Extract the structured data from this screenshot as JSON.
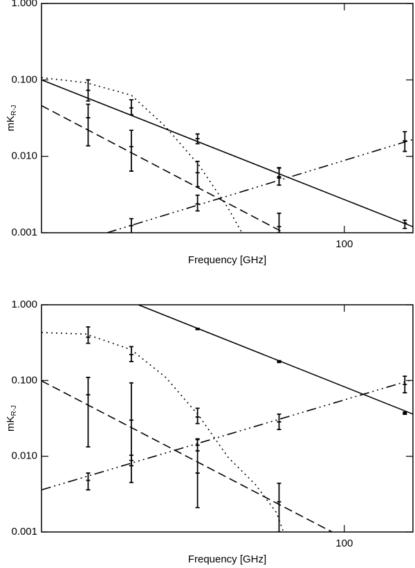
{
  "chart_data": [
    {
      "type": "line",
      "xlabel": "Frequency [GHz]",
      "ylabel": "mK",
      "ylabel_subscript": "R-J",
      "log_x": true,
      "log_y": true,
      "grid": false,
      "color": "#000000",
      "xlim": [
        16.7,
        150
      ],
      "ylim": [
        0.001,
        1
      ],
      "xticks": [
        100
      ],
      "yticks": [
        0.001,
        {
          "value": 0.01,
          "label": "0.010"
        },
        {
          "value": 0.1,
          "label": "0.100"
        },
        {
          "value": 1,
          "label": "1.000"
        }
      ],
      "series": [
        {
          "style": "solid",
          "x": [
            16.7,
            150
          ],
          "values": [
            0.1,
            0.0012
          ]
        },
        {
          "style": "dashed",
          "x": [
            16.7,
            70
          ],
          "values": [
            0.046,
            0.001
          ]
        },
        {
          "style": "dotted",
          "x": [
            16.7,
            21.7,
            28.4,
            34.8,
            42.4,
            50.3,
            54.6
          ],
          "values": [
            0.107,
            0.092,
            0.063,
            0.0243,
            0.0076,
            0.0021,
            0.001
          ]
        },
        {
          "style": "dash-dot-dot",
          "x": [
            24.6,
            150
          ],
          "values": [
            0.001,
            0.0166
          ]
        }
      ],
      "error_bars": {
        "x": [
          22,
          28.4,
          42,
          68,
          143,
          22,
          28.4,
          42,
          68,
          28.4,
          42,
          68,
          143
        ],
        "values": [
          0.073,
          0.043,
          0.017,
          0.0054,
          0.00134,
          0.032,
          0.0134,
          0.0061,
          0.0012,
          0.00124,
          0.00238,
          0.0052,
          0.0159
        ],
        "lower": [
          0.053,
          0.035,
          0.0146,
          0.0042,
          0.00114,
          0.0137,
          0.0064,
          0.004,
          0.001,
          0.00096,
          0.00193,
          0.0042,
          0.0116
        ],
        "upper": [
          0.1,
          0.055,
          0.0196,
          0.007,
          0.00146,
          0.048,
          0.0219,
          0.0086,
          0.0018,
          0.00153,
          0.0031,
          0.0071,
          0.021
        ]
      }
    },
    {
      "type": "line",
      "xlabel": "Frequency [GHz]",
      "ylabel": "mK",
      "ylabel_subscript": "R-J",
      "log_x": true,
      "log_y": true,
      "grid": false,
      "color": "#000000",
      "xlim": [
        16.7,
        150
      ],
      "ylim": [
        0.001,
        1
      ],
      "xticks": [
        100
      ],
      "yticks": [
        0.001,
        {
          "value": 0.01,
          "label": "0.010"
        },
        {
          "value": 0.1,
          "label": "0.100"
        },
        {
          "value": 1,
          "label": "1.000"
        }
      ],
      "series": [
        {
          "style": "solid",
          "x": [
            29.6,
            150
          ],
          "values": [
            1,
            0.036
          ]
        },
        {
          "style": "dashed",
          "x": [
            16.7,
            93
          ],
          "values": [
            0.099,
            0.001
          ]
        },
        {
          "style": "dotted",
          "x": [
            16.7,
            21.7,
            28.4,
            34.8,
            42.4,
            50.3,
            59.2,
            67,
            69.8
          ],
          "values": [
            0.43,
            0.41,
            0.255,
            0.11,
            0.034,
            0.0097,
            0.0042,
            0.0018,
            0.001
          ]
        },
        {
          "style": "dash-dot-dot",
          "x": [
            16.7,
            150
          ],
          "values": [
            0.0036,
            0.103
          ]
        }
      ],
      "error_bars": {
        "x": [
          42,
          68,
          143,
          22,
          28.4,
          42,
          22,
          28.4,
          42,
          68,
          22,
          28.4,
          42,
          68,
          143
        ],
        "values": [
          0.48,
          0.178,
          0.037,
          0.373,
          0.22,
          0.033,
          0.065,
          0.03,
          0.006,
          0.0025,
          0.0048,
          0.0088,
          0.014,
          0.0285,
          0.089
        ],
        "lower": [
          0.47,
          0.173,
          0.0358,
          0.31,
          0.178,
          0.027,
          0.0133,
          0.0045,
          0.0021,
          0.001,
          0.0036,
          0.0075,
          0.0118,
          0.0225,
          0.069
        ],
        "upper": [
          0.49,
          0.183,
          0.0383,
          0.51,
          0.28,
          0.043,
          0.11,
          0.093,
          0.017,
          0.0044,
          0.006,
          0.0103,
          0.0166,
          0.036,
          0.114
        ]
      }
    }
  ]
}
